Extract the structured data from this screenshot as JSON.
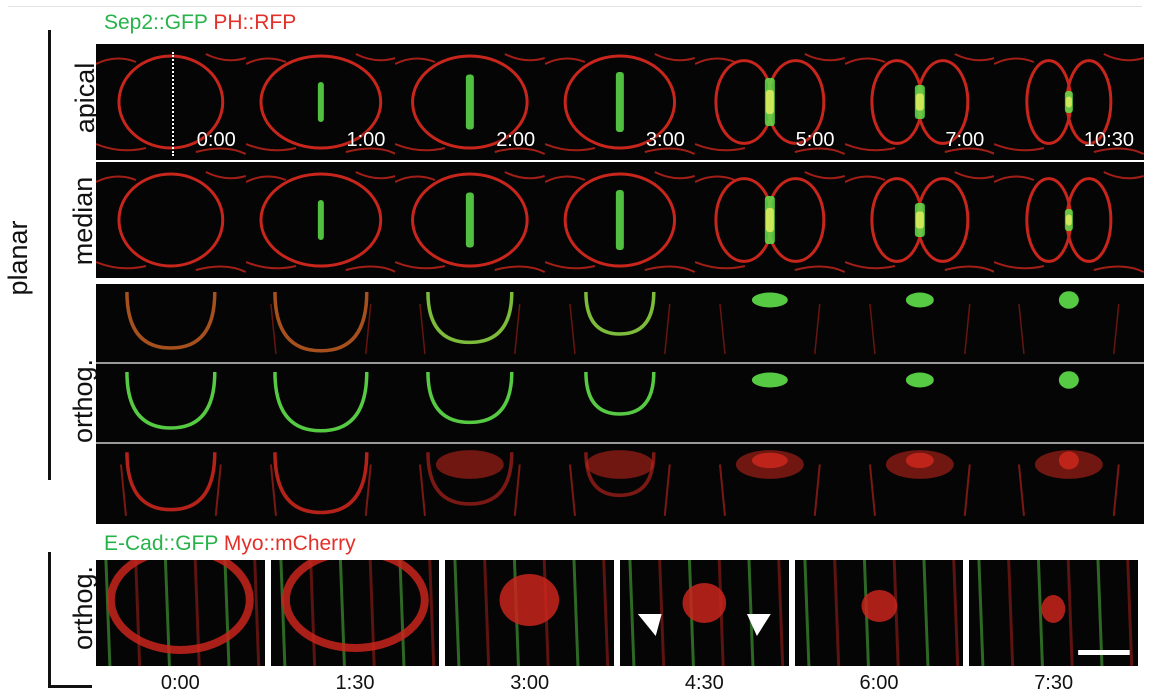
{
  "figure": {
    "top_legend": {
      "marker1": "Sep2::GFP",
      "marker2": "PH::RFP"
    },
    "bottom_legend": {
      "marker1": "E-Cad::GFP",
      "marker2": "Myo::mCherry"
    },
    "row_labels": {
      "apical": "apical",
      "median": "median",
      "orthog_top": "orthog.",
      "orthog_bottom": "orthog.",
      "planar": "planar"
    },
    "top_timepoints": [
      "0:00",
      "1:00",
      "2:00",
      "3:00",
      "5:00",
      "7:00",
      "10:30"
    ],
    "bottom_timepoints": [
      "0:00",
      "1:30",
      "3:00",
      "4:30",
      "6:00",
      "7:30"
    ],
    "colors": {
      "green": "#27b34a",
      "red": "#e5302a",
      "membrane_red": "#c8261c",
      "septin_green": "#5fe04a"
    }
  }
}
